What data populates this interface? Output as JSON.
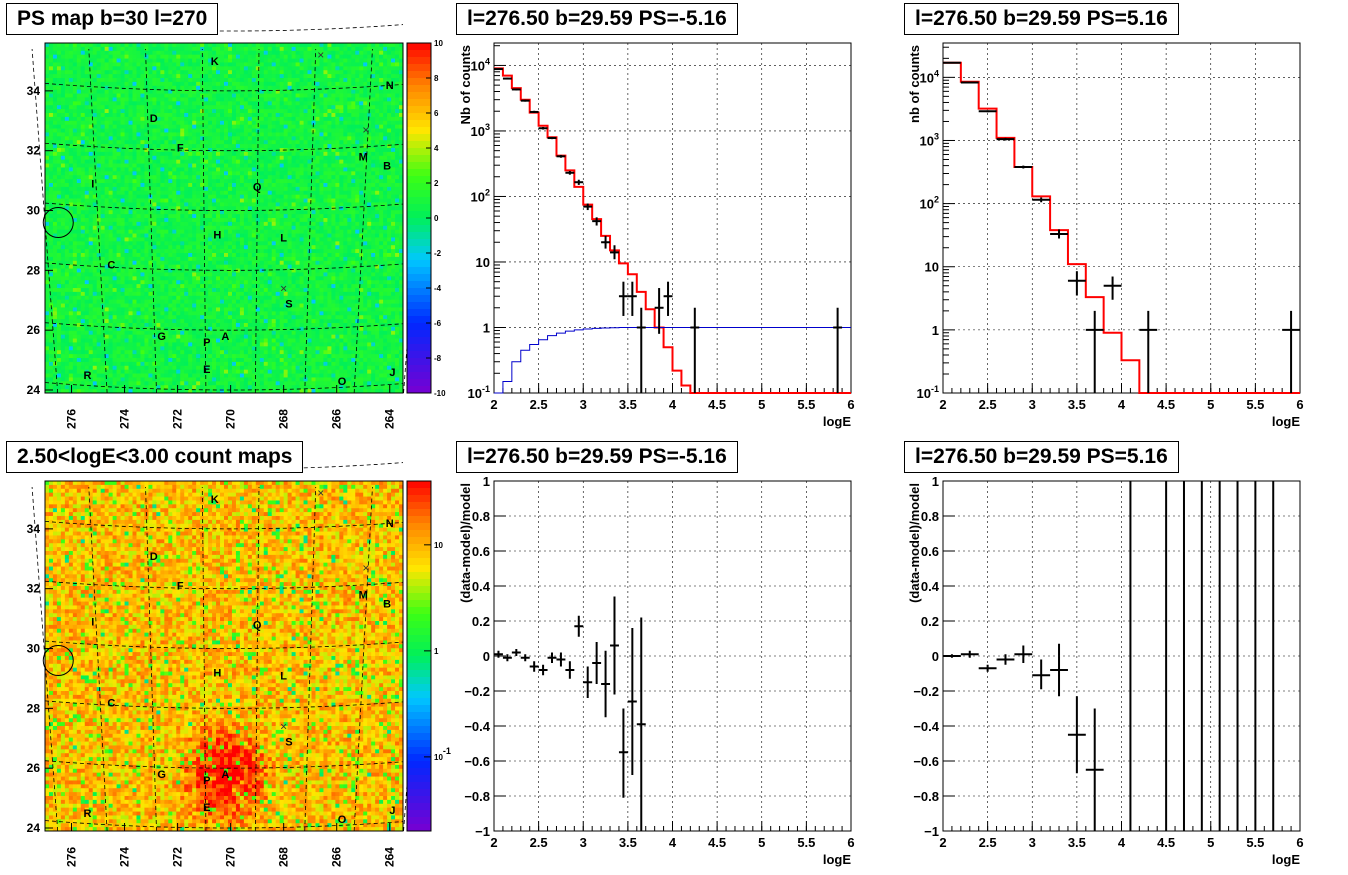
{
  "chart_data": [
    {
      "id": "ps_map",
      "type": "heatmap",
      "title": "PS map b=30 l=270",
      "x_ticks": [
        "276",
        "274",
        "272",
        "270",
        "268",
        "266",
        "264"
      ],
      "y_ticks": [
        "24",
        "26",
        "28",
        "30",
        "32",
        "34"
      ],
      "xlim": [
        277,
        263.5
      ],
      "ylim": [
        23.9,
        35.6
      ],
      "colorbar": {
        "scale": "linear",
        "min": -10,
        "max": 10,
        "ticks": [
          "10",
          "8",
          "6",
          "4",
          "2",
          "0",
          "-2",
          "-4",
          "-6",
          "-8",
          "-10"
        ]
      },
      "palette": "mostly green (0)",
      "source_labels": [
        {
          "text": "K",
          "l": 270.6,
          "b": 35.0
        },
        {
          "text": "N",
          "l": 264.0,
          "b": 34.2
        },
        {
          "text": "D",
          "l": 272.9,
          "b": 33.1
        },
        {
          "text": "F",
          "l": 271.9,
          "b": 32.1
        },
        {
          "text": "M",
          "l": 265.0,
          "b": 31.8
        },
        {
          "text": "B",
          "l": 264.1,
          "b": 31.5
        },
        {
          "text": "I",
          "l": 275.2,
          "b": 30.9
        },
        {
          "text": "Q",
          "l": 269.0,
          "b": 30.8
        },
        {
          "text": "H",
          "l": 270.5,
          "b": 29.2
        },
        {
          "text": "L",
          "l": 268.0,
          "b": 29.1
        },
        {
          "text": "C",
          "l": 274.5,
          "b": 28.2
        },
        {
          "text": "S",
          "l": 267.8,
          "b": 26.9
        },
        {
          "text": "G",
          "l": 272.6,
          "b": 25.8
        },
        {
          "text": "P",
          "l": 270.9,
          "b": 25.6
        },
        {
          "text": "A",
          "l": 270.2,
          "b": 25.8
        },
        {
          "text": "E",
          "l": 270.9,
          "b": 24.7
        },
        {
          "text": "R",
          "l": 275.4,
          "b": 24.5
        },
        {
          "text": "O",
          "l": 265.8,
          "b": 24.3
        },
        {
          "text": "J",
          "l": 263.9,
          "b": 24.6
        }
      ],
      "crosses": [
        {
          "l": 266.6,
          "b": 35.2
        },
        {
          "l": 264.9,
          "b": 32.7
        },
        {
          "l": 268.0,
          "b": 27.4
        }
      ],
      "circle": {
        "l": 276.5,
        "b": 29.6
      }
    },
    {
      "id": "spec_neg",
      "type": "line",
      "title": "l=276.50 b=29.59 PS=-5.16",
      "xlabel": "logE",
      "ylabel": "Nb of counts",
      "ylog": true,
      "xlim": [
        2,
        6
      ],
      "ylim": [
        0.1,
        22000
      ],
      "x_ticks": [
        "2",
        "2.5",
        "3",
        "3.5",
        "4",
        "4.5",
        "5",
        "5.5",
        "6"
      ],
      "y_ticks": [
        "10^-1",
        "1",
        "10",
        "10^2",
        "10^3",
        "10^4"
      ],
      "series": [
        {
          "style": "model_hist",
          "edges": [
            2,
            2.1,
            2.2,
            2.3,
            2.4,
            2.5,
            2.6,
            2.7,
            2.8,
            2.9,
            3.0,
            3.1,
            3.2,
            3.3,
            3.4,
            3.5,
            3.6,
            3.7,
            3.8,
            3.9,
            4.0,
            4.1,
            4.2,
            6.0
          ],
          "values": [
            9000,
            7000,
            4500,
            3000,
            1900,
            1200,
            800,
            420,
            250,
            140,
            75,
            45,
            25,
            15,
            9.5,
            6.5,
            3.5,
            1.9,
            1.0,
            0.5,
            0.22,
            0.13,
            0.1
          ]
        },
        {
          "style": "ps_hist",
          "edges": [
            2,
            2.1,
            2.2,
            2.3,
            2.4,
            2.5,
            2.6,
            2.7,
            2.8,
            2.9,
            3.0,
            3.1,
            3.2,
            3.3,
            3.4,
            3.5,
            3.6,
            3.7,
            3.8,
            3.9,
            4.0,
            4.2,
            4.6,
            5.0,
            6.0
          ],
          "values": [
            0.1,
            0.15,
            0.3,
            0.45,
            0.55,
            0.65,
            0.75,
            0.82,
            0.88,
            0.92,
            0.95,
            0.97,
            0.98,
            0.99,
            1.0,
            1.0,
            1.0,
            1.0,
            1.0,
            1.0,
            1.0,
            1.0,
            1.0,
            1.0
          ]
        },
        {
          "style": "data_points",
          "points": [
            {
              "x": 2.05,
              "y": 8800,
              "xe": 0.05,
              "lo": 8600,
              "hi": 9000
            },
            {
              "x": 2.15,
              "y": 6300,
              "xe": 0.05,
              "lo": 6100,
              "hi": 6500
            },
            {
              "x": 2.25,
              "y": 4300,
              "xe": 0.05,
              "lo": 4150,
              "hi": 4450
            },
            {
              "x": 2.35,
              "y": 2900,
              "xe": 0.05,
              "lo": 2800,
              "hi": 3000
            },
            {
              "x": 2.45,
              "y": 1950,
              "xe": 0.05,
              "lo": 1880,
              "hi": 2030
            },
            {
              "x": 2.55,
              "y": 1100,
              "xe": 0.05,
              "lo": 1050,
              "hi": 1150
            },
            {
              "x": 2.65,
              "y": 780,
              "xe": 0.05,
              "lo": 750,
              "hi": 810
            },
            {
              "x": 2.75,
              "y": 410,
              "xe": 0.05,
              "lo": 390,
              "hi": 430
            },
            {
              "x": 2.85,
              "y": 230,
              "xe": 0.05,
              "lo": 215,
              "hi": 245
            },
            {
              "x": 2.95,
              "y": 165,
              "xe": 0.05,
              "lo": 150,
              "hi": 180
            },
            {
              "x": 3.05,
              "y": 70,
              "xe": 0.05,
              "lo": 62,
              "hi": 78
            },
            {
              "x": 3.15,
              "y": 42,
              "xe": 0.05,
              "lo": 36,
              "hi": 48
            },
            {
              "x": 3.25,
              "y": 20,
              "xe": 0.05,
              "lo": 16,
              "hi": 25
            },
            {
              "x": 3.35,
              "y": 14,
              "xe": 0.05,
              "lo": 11,
              "hi": 18
            },
            {
              "x": 3.45,
              "y": 3,
              "xe": 0.05,
              "lo": 1.5,
              "hi": 5
            },
            {
              "x": 3.55,
              "y": 3,
              "xe": 0.05,
              "lo": 1.5,
              "hi": 5
            },
            {
              "x": 3.65,
              "y": 1,
              "xe": 0.05,
              "lo": 0.1,
              "hi": 2
            },
            {
              "x": 3.85,
              "y": 2,
              "xe": 0.05,
              "lo": 0.8,
              "hi": 4
            },
            {
              "x": 3.95,
              "y": 3,
              "xe": 0.05,
              "lo": 1.5,
              "hi": 5
            },
            {
              "x": 4.25,
              "y": 1,
              "xe": 0.05,
              "lo": 0.1,
              "hi": 2
            },
            {
              "x": 5.85,
              "y": 1,
              "xe": 0.05,
              "lo": 0.1,
              "hi": 2
            }
          ]
        }
      ]
    },
    {
      "id": "spec_pos",
      "type": "line",
      "title": "l=276.50 b=29.59 PS=5.16",
      "xlabel": "logE",
      "ylabel": "nb of counts",
      "ylog": true,
      "xlim": [
        2,
        6
      ],
      "ylim": [
        0.1,
        35000
      ],
      "x_ticks": [
        "2",
        "2.5",
        "3",
        "3.5",
        "4",
        "4.5",
        "5",
        "5.5",
        "6"
      ],
      "y_ticks": [
        "10^-1",
        "1",
        "10",
        "10^2",
        "10^3",
        "10^4"
      ],
      "series": [
        {
          "style": "model_hist",
          "edges": [
            2,
            2.2,
            2.4,
            2.6,
            2.8,
            3.0,
            3.2,
            3.4,
            3.6,
            3.8,
            4.0,
            4.2,
            6.0
          ],
          "values": [
            17000,
            8500,
            3200,
            1100,
            380,
            130,
            38,
            11,
            3.3,
            0.9,
            0.33,
            0.1
          ]
        },
        {
          "style": "data_points",
          "points": [
            {
              "x": 2.1,
              "y": 17000,
              "xe": 0.1,
              "lo": 16700,
              "hi": 17300
            },
            {
              "x": 2.3,
              "y": 8300,
              "xe": 0.1,
              "lo": 8100,
              "hi": 8500
            },
            {
              "x": 2.5,
              "y": 2900,
              "xe": 0.1,
              "lo": 2800,
              "hi": 3000
            },
            {
              "x": 2.7,
              "y": 1050,
              "xe": 0.1,
              "lo": 1000,
              "hi": 1100
            },
            {
              "x": 2.9,
              "y": 380,
              "xe": 0.1,
              "lo": 360,
              "hi": 400
            },
            {
              "x": 3.1,
              "y": 115,
              "xe": 0.1,
              "lo": 105,
              "hi": 125
            },
            {
              "x": 3.3,
              "y": 33,
              "xe": 0.1,
              "lo": 28,
              "hi": 39
            },
            {
              "x": 3.5,
              "y": 6,
              "xe": 0.1,
              "lo": 3.5,
              "hi": 8.5
            },
            {
              "x": 3.7,
              "y": 1,
              "xe": 0.1,
              "lo": 0.1,
              "hi": 2
            },
            {
              "x": 3.9,
              "y": 5,
              "xe": 0.1,
              "lo": 3,
              "hi": 7
            },
            {
              "x": 4.3,
              "y": 1,
              "xe": 0.1,
              "lo": 0.1,
              "hi": 2
            },
            {
              "x": 5.9,
              "y": 1,
              "xe": 0.1,
              "lo": 0.1,
              "hi": 2
            }
          ]
        }
      ]
    },
    {
      "id": "count_map",
      "type": "heatmap",
      "title": "2.50<logE<3.00 count maps",
      "x_ticks": [
        "276",
        "274",
        "272",
        "270",
        "268",
        "266",
        "264"
      ],
      "y_ticks": [
        "24",
        "26",
        "28",
        "30",
        "32",
        "34"
      ],
      "xlim": [
        277,
        263.5
      ],
      "ylim": [
        23.9,
        35.6
      ],
      "colorbar": {
        "scale": "log",
        "min": 0.02,
        "max": 40,
        "ticks": [
          "10",
          "1",
          "10^-1"
        ]
      },
      "palette": "mostly orange/red, hot spot near A",
      "source_labels": [
        {
          "text": "K",
          "l": 270.6,
          "b": 35.0
        },
        {
          "text": "N",
          "l": 264.0,
          "b": 34.2
        },
        {
          "text": "D",
          "l": 272.9,
          "b": 33.1
        },
        {
          "text": "F",
          "l": 271.9,
          "b": 32.1
        },
        {
          "text": "M",
          "l": 265.0,
          "b": 31.8
        },
        {
          "text": "B",
          "l": 264.1,
          "b": 31.5
        },
        {
          "text": "I",
          "l": 275.2,
          "b": 30.9
        },
        {
          "text": "Q",
          "l": 269.0,
          "b": 30.8
        },
        {
          "text": "H",
          "l": 270.5,
          "b": 29.2
        },
        {
          "text": "L",
          "l": 268.0,
          "b": 29.1
        },
        {
          "text": "C",
          "l": 274.5,
          "b": 28.2
        },
        {
          "text": "S",
          "l": 267.8,
          "b": 26.9
        },
        {
          "text": "G",
          "l": 272.6,
          "b": 25.8
        },
        {
          "text": "P",
          "l": 270.9,
          "b": 25.6
        },
        {
          "text": "A",
          "l": 270.2,
          "b": 25.8
        },
        {
          "text": "E",
          "l": 270.9,
          "b": 24.7
        },
        {
          "text": "R",
          "l": 275.4,
          "b": 24.5
        },
        {
          "text": "O",
          "l": 265.8,
          "b": 24.3
        },
        {
          "text": "J",
          "l": 263.9,
          "b": 24.6
        }
      ],
      "crosses": [
        {
          "l": 266.6,
          "b": 35.2
        },
        {
          "l": 264.9,
          "b": 32.7
        },
        {
          "l": 268.0,
          "b": 27.4
        }
      ],
      "circle": {
        "l": 276.5,
        "b": 29.6
      }
    },
    {
      "id": "res_neg",
      "type": "scatter",
      "title": "l=276.50 b=29.59 PS=-5.16",
      "xlabel": "logE",
      "ylabel": "(data-model)/model",
      "xlim": [
        2,
        6
      ],
      "ylim": [
        -1,
        1
      ],
      "x_ticks": [
        "2",
        "2.5",
        "3",
        "3.5",
        "4",
        "4.5",
        "5",
        "5.5",
        "6"
      ],
      "y_ticks": [
        "-1",
        "-0.8",
        "-0.6",
        "-0.4",
        "-0.2",
        "0",
        "0.2",
        "0.4",
        "0.6",
        "0.8",
        "1"
      ],
      "points": [
        {
          "x": 2.05,
          "y": 0.01,
          "xe": 0.05,
          "lo": -0.01,
          "hi": 0.03
        },
        {
          "x": 2.15,
          "y": -0.01,
          "xe": 0.05,
          "lo": -0.03,
          "hi": 0.01
        },
        {
          "x": 2.25,
          "y": 0.02,
          "xe": 0.05,
          "lo": 0.0,
          "hi": 0.04
        },
        {
          "x": 2.35,
          "y": -0.01,
          "xe": 0.05,
          "lo": -0.03,
          "hi": 0.01
        },
        {
          "x": 2.45,
          "y": -0.06,
          "xe": 0.05,
          "lo": -0.09,
          "hi": -0.03
        },
        {
          "x": 2.55,
          "y": -0.08,
          "xe": 0.05,
          "lo": -0.11,
          "hi": -0.05
        },
        {
          "x": 2.65,
          "y": -0.01,
          "xe": 0.05,
          "lo": -0.04,
          "hi": 0.02
        },
        {
          "x": 2.75,
          "y": -0.02,
          "xe": 0.05,
          "lo": -0.06,
          "hi": 0.02
        },
        {
          "x": 2.85,
          "y": -0.08,
          "xe": 0.05,
          "lo": -0.13,
          "hi": -0.03
        },
        {
          "x": 2.95,
          "y": 0.17,
          "xe": 0.05,
          "lo": 0.11,
          "hi": 0.23
        },
        {
          "x": 3.05,
          "y": -0.15,
          "xe": 0.05,
          "lo": -0.24,
          "hi": -0.06
        },
        {
          "x": 3.15,
          "y": -0.04,
          "xe": 0.05,
          "lo": -0.16,
          "hi": 0.08
        },
        {
          "x": 3.25,
          "y": -0.16,
          "xe": 0.05,
          "lo": -0.35,
          "hi": 0.03
        },
        {
          "x": 3.35,
          "y": 0.06,
          "xe": 0.05,
          "lo": -0.22,
          "hi": 0.34
        },
        {
          "x": 3.45,
          "y": -0.55,
          "xe": 0.05,
          "lo": -0.81,
          "hi": -0.3
        },
        {
          "x": 3.55,
          "y": -0.26,
          "xe": 0.05,
          "lo": -0.68,
          "hi": 0.16
        },
        {
          "x": 3.65,
          "y": -0.39,
          "xe": 0.05,
          "lo": -1.0,
          "hi": 0.22
        }
      ]
    },
    {
      "id": "res_pos",
      "type": "scatter",
      "title": "l=276.50 b=29.59 PS=5.16",
      "xlabel": "logE",
      "ylabel": "(data-model)/model",
      "xlim": [
        2,
        6
      ],
      "ylim": [
        -1,
        1
      ],
      "x_ticks": [
        "2",
        "2.5",
        "3",
        "3.5",
        "4",
        "4.5",
        "5",
        "5.5",
        "6"
      ],
      "y_ticks": [
        "-1",
        "-0.8",
        "-0.6",
        "-0.4",
        "-0.2",
        "0",
        "0.2",
        "0.4",
        "0.6",
        "0.8",
        "1"
      ],
      "points": [
        {
          "x": 2.1,
          "y": 0.0,
          "xe": 0.1,
          "lo": -0.01,
          "hi": 0.01
        },
        {
          "x": 2.3,
          "y": 0.01,
          "xe": 0.1,
          "lo": -0.01,
          "hi": 0.03
        },
        {
          "x": 2.5,
          "y": -0.07,
          "xe": 0.1,
          "lo": -0.09,
          "hi": -0.05
        },
        {
          "x": 2.7,
          "y": -0.02,
          "xe": 0.1,
          "lo": -0.05,
          "hi": 0.01
        },
        {
          "x": 2.9,
          "y": 0.01,
          "xe": 0.1,
          "lo": -0.04,
          "hi": 0.06
        },
        {
          "x": 3.1,
          "y": -0.11,
          "xe": 0.1,
          "lo": -0.19,
          "hi": -0.02
        },
        {
          "x": 3.3,
          "y": -0.08,
          "xe": 0.1,
          "lo": -0.23,
          "hi": 0.07
        },
        {
          "x": 3.5,
          "y": -0.45,
          "xe": 0.1,
          "lo": -0.67,
          "hi": -0.23
        },
        {
          "x": 3.7,
          "y": -0.65,
          "xe": 0.1,
          "lo": -1.0,
          "hi": -0.3
        },
        {
          "x": 4.1,
          "y": 1.0,
          "xe": 0.0,
          "lo": -1.0,
          "hi": 1.0
        },
        {
          "x": 4.5,
          "y": 1.0,
          "xe": 0.0,
          "lo": -1.0,
          "hi": 1.0
        },
        {
          "x": 4.7,
          "y": 1.0,
          "xe": 0.0,
          "lo": -1.0,
          "hi": 1.0
        },
        {
          "x": 4.9,
          "y": 1.0,
          "xe": 0.0,
          "lo": -1.0,
          "hi": 1.0
        },
        {
          "x": 5.1,
          "y": 1.0,
          "xe": 0.0,
          "lo": -1.0,
          "hi": 1.0
        },
        {
          "x": 5.3,
          "y": 1.0,
          "xe": 0.0,
          "lo": -1.0,
          "hi": 1.0
        },
        {
          "x": 5.5,
          "y": 1.0,
          "xe": 0.0,
          "lo": -1.0,
          "hi": 1.0
        },
        {
          "x": 5.7,
          "y": 1.0,
          "xe": 0.0,
          "lo": -1.0,
          "hi": 1.0
        }
      ]
    }
  ],
  "colors": {
    "model_line": "#ff0000",
    "ps_line": "#0000cc",
    "data": "#000000",
    "grid": "#000000"
  }
}
